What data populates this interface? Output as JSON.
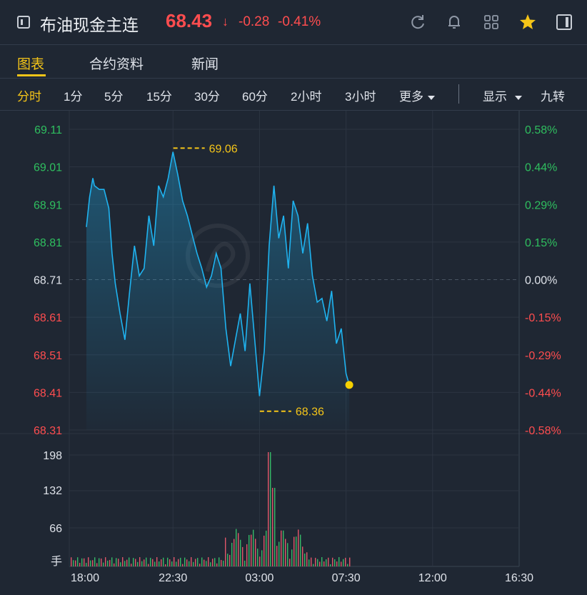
{
  "header": {
    "title": "布油现金主连",
    "price": "68.43",
    "arrow": "↓",
    "change": "-0.28",
    "change_pct": "-0.41%",
    "icons": [
      "refresh-icon",
      "bell-icon",
      "grid-icon",
      "star-icon",
      "sidebar-icon"
    ]
  },
  "tabs": [
    {
      "label": "图表",
      "active": true
    },
    {
      "label": "合约资料",
      "active": false
    },
    {
      "label": "新闻",
      "active": false
    }
  ],
  "periods": {
    "items": [
      "分时",
      "1分",
      "5分",
      "15分",
      "30分",
      "60分",
      "2小时",
      "3小时"
    ],
    "active": "分时",
    "more_label": "更多",
    "display_label": "显示",
    "nine_label": "九转"
  },
  "colors": {
    "accent": "#f5c518",
    "up": "#2fbf5f",
    "down": "#ff4d4f",
    "line": "#1fb3f0",
    "background": "#1f2733"
  },
  "chart_data": {
    "type": "line",
    "price_axis": {
      "ticks": [
        "69.11",
        "69.01",
        "68.91",
        "68.81",
        "68.71",
        "68.61",
        "68.51",
        "68.41",
        "68.31"
      ],
      "ylim": [
        68.31,
        69.11
      ],
      "prev_close": 68.71
    },
    "pct_axis": {
      "ticks": [
        "0.58%",
        "0.44%",
        "0.29%",
        "0.15%",
        "0.00%",
        "-0.15%",
        "-0.29%",
        "-0.44%",
        "-0.58%"
      ]
    },
    "volume_axis": {
      "ticks": [
        "198",
        "132",
        "66"
      ],
      "unit": "手"
    },
    "x_ticks": [
      "18:00",
      "22:30",
      "03:00",
      "07:30",
      "12:00",
      "16:30"
    ],
    "high": {
      "label": "69.06",
      "time": "22:31",
      "value": 69.06
    },
    "low": {
      "label": "68.36",
      "time": "03:01",
      "value": 68.36
    },
    "last": {
      "time": "07:40",
      "value": 68.43
    },
    "series": [
      {
        "x": "18:00",
        "y": 68.85
      },
      {
        "x": "18:10",
        "y": 68.93
      },
      {
        "x": "18:20",
        "y": 68.98
      },
      {
        "x": "18:25",
        "y": 68.96
      },
      {
        "x": "18:40",
        "y": 68.95
      },
      {
        "x": "18:55",
        "y": 68.95
      },
      {
        "x": "19:10",
        "y": 68.9
      },
      {
        "x": "19:20",
        "y": 68.78
      },
      {
        "x": "19:30",
        "y": 68.7
      },
      {
        "x": "19:45",
        "y": 68.62
      },
      {
        "x": "20:00",
        "y": 68.55
      },
      {
        "x": "20:15",
        "y": 68.68
      },
      {
        "x": "20:30",
        "y": 68.8
      },
      {
        "x": "20:45",
        "y": 68.72
      },
      {
        "x": "21:00",
        "y": 68.74
      },
      {
        "x": "21:15",
        "y": 68.88
      },
      {
        "x": "21:30",
        "y": 68.8
      },
      {
        "x": "21:45",
        "y": 68.96
      },
      {
        "x": "22:00",
        "y": 68.93
      },
      {
        "x": "22:15",
        "y": 68.98
      },
      {
        "x": "22:30",
        "y": 69.05
      },
      {
        "x": "22:45",
        "y": 68.99
      },
      {
        "x": "23:00",
        "y": 68.92
      },
      {
        "x": "23:15",
        "y": 68.88
      },
      {
        "x": "23:30",
        "y": 68.83
      },
      {
        "x": "23:45",
        "y": 68.78
      },
      {
        "x": "00:00",
        "y": 68.74
      },
      {
        "x": "00:15",
        "y": 68.69
      },
      {
        "x": "00:30",
        "y": 68.72
      },
      {
        "x": "00:45",
        "y": 68.78
      },
      {
        "x": "01:00",
        "y": 68.74
      },
      {
        "x": "01:15",
        "y": 68.58
      },
      {
        "x": "01:30",
        "y": 68.48
      },
      {
        "x": "01:45",
        "y": 68.55
      },
      {
        "x": "02:00",
        "y": 68.62
      },
      {
        "x": "02:15",
        "y": 68.52
      },
      {
        "x": "02:30",
        "y": 68.7
      },
      {
        "x": "02:45",
        "y": 68.55
      },
      {
        "x": "03:00",
        "y": 68.4
      },
      {
        "x": "03:15",
        "y": 68.52
      },
      {
        "x": "03:30",
        "y": 68.8
      },
      {
        "x": "03:45",
        "y": 68.96
      },
      {
        "x": "04:00",
        "y": 68.82
      },
      {
        "x": "04:15",
        "y": 68.88
      },
      {
        "x": "04:30",
        "y": 68.74
      },
      {
        "x": "04:45",
        "y": 68.92
      },
      {
        "x": "05:00",
        "y": 68.88
      },
      {
        "x": "05:15",
        "y": 68.78
      },
      {
        "x": "05:30",
        "y": 68.86
      },
      {
        "x": "05:45",
        "y": 68.72
      },
      {
        "x": "06:00",
        "y": 68.65
      },
      {
        "x": "06:15",
        "y": 68.66
      },
      {
        "x": "06:30",
        "y": 68.6
      },
      {
        "x": "06:45",
        "y": 68.68
      },
      {
        "x": "07:00",
        "y": 68.54
      },
      {
        "x": "07:15",
        "y": 68.58
      },
      {
        "x": "07:30",
        "y": 68.46
      },
      {
        "x": "07:40",
        "y": 68.43
      }
    ]
  }
}
